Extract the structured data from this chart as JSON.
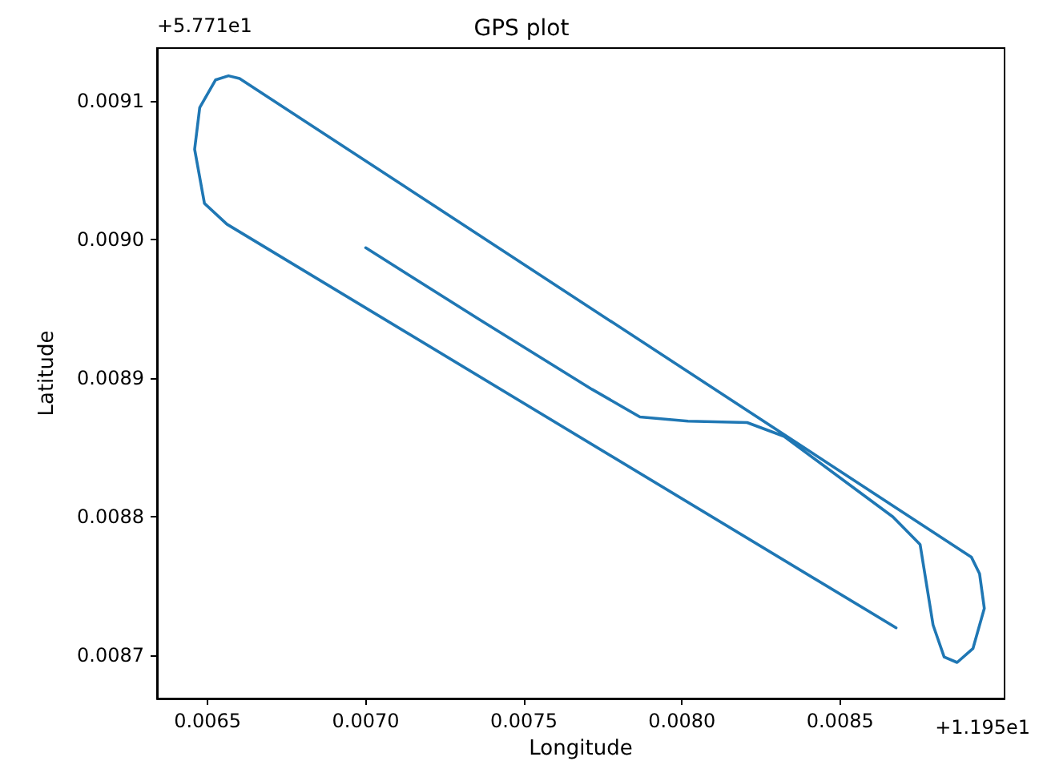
{
  "chart_data": {
    "type": "line",
    "title": "GPS plot",
    "xlabel": "Longitude",
    "ylabel": "Latitude",
    "annotations": [
      "+5.771e1",
      "+1.195e1"
    ],
    "series": [
      {
        "color": "#1f77b4",
        "x": [
          0.007,
          0.007361,
          0.007715,
          0.007867,
          0.008019,
          0.008206,
          0.008323,
          0.008667,
          0.008753,
          0.008794,
          0.008829,
          0.00887,
          0.00892,
          0.008956,
          0.008941,
          0.008915,
          0.006662,
          0.006601,
          0.006566,
          0.006525,
          0.006475,
          0.006459,
          0.00649,
          0.006561,
          0.008677
        ],
        "values": [
          0.008994,
          0.008942,
          0.008892,
          0.008872,
          0.008869,
          0.008868,
          0.008858,
          0.0088,
          0.00878,
          0.008722,
          0.008699,
          0.008695,
          0.008705,
          0.008734,
          0.008759,
          0.008771,
          0.009107,
          0.009116,
          0.009118,
          0.009115,
          0.009095,
          0.009065,
          0.009026,
          0.009011,
          0.00872
        ]
      }
    ],
    "xlim": [
      0.00634,
      0.00902
    ],
    "ylim": [
      0.008669,
      0.009138
    ],
    "xticks": [
      {
        "value": 0.0065,
        "label": "0.0065"
      },
      {
        "value": 0.007,
        "label": "0.0070"
      },
      {
        "value": 0.0075,
        "label": "0.0075"
      },
      {
        "value": 0.008,
        "label": "0.0080"
      },
      {
        "value": 0.0085,
        "label": "0.0085"
      }
    ],
    "yticks": [
      {
        "value": 0.0087,
        "label": "0.0087"
      },
      {
        "value": 0.0088,
        "label": "0.0088"
      },
      {
        "value": 0.0089,
        "label": "0.0089"
      },
      {
        "value": 0.009,
        "label": "0.0090"
      },
      {
        "value": 0.0091,
        "label": "0.0091"
      }
    ],
    "grid": false,
    "marker": "none",
    "line_style": "solid"
  }
}
